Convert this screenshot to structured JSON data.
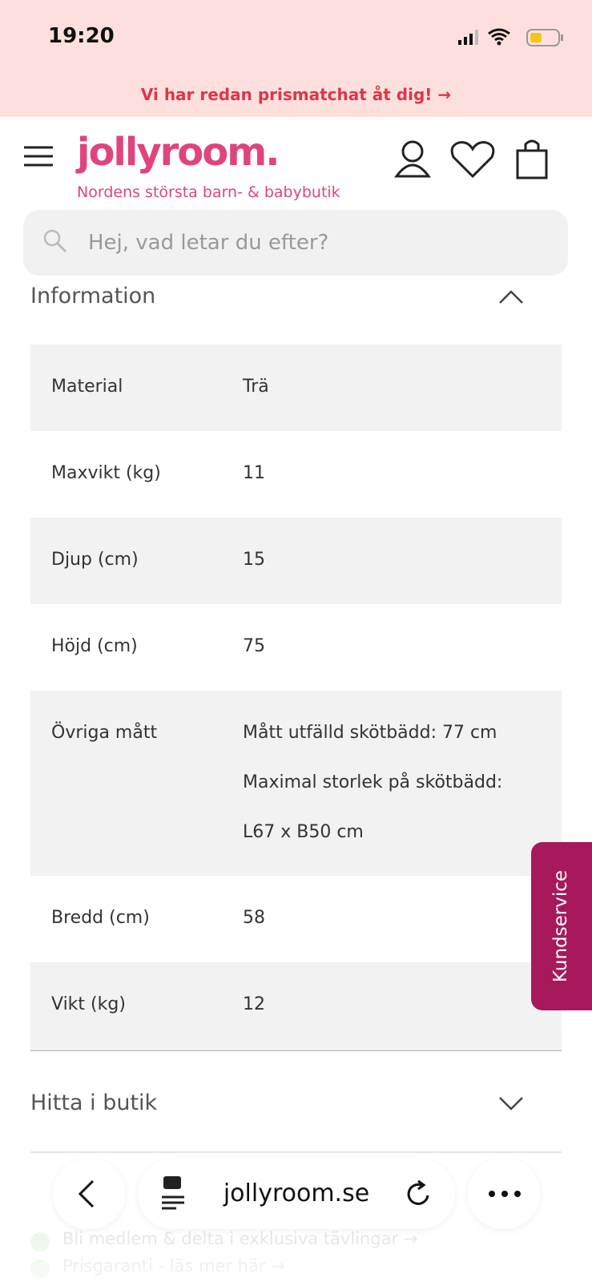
{
  "status_bar": {
    "time": "19:20"
  },
  "banner": {
    "text": "Vi har redan prismatchat åt dig! →"
  },
  "header": {
    "logo": "jollyroom.",
    "tagline": "Nordens största barn- & babybutik"
  },
  "search": {
    "placeholder": "Hej, vad letar du efter?"
  },
  "information": {
    "title": "Information",
    "rows": [
      [
        "Material",
        [
          "Trä"
        ]
      ],
      [
        "Maxvikt (kg)",
        [
          "11"
        ]
      ],
      [
        "Djup (cm)",
        [
          "15"
        ]
      ],
      [
        "Höjd (cm)",
        [
          "75"
        ]
      ],
      [
        "Övriga mått",
        [
          "Mått utfälld skötbädd: 77 cm",
          "Maximal storlek på skötbädd:",
          "L67 x B50 cm"
        ]
      ],
      [
        "Bredd (cm)",
        [
          "58"
        ]
      ],
      [
        "Vikt (kg)",
        [
          "12"
        ]
      ]
    ]
  },
  "store": {
    "title": "Hitta i butik"
  },
  "perks": [
    "Bli medlem & delta i exklusiva tävlingar →",
    "Prisgaranti - läs mer här →"
  ],
  "browser": {
    "url": "jollyroom.se"
  },
  "side_tab": {
    "label": "Kundservice"
  }
}
